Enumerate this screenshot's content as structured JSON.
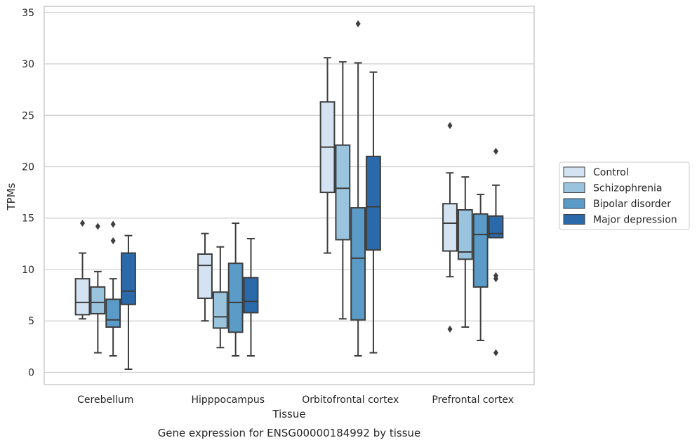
{
  "chart_data": {
    "type": "box",
    "xlabel": "Tissue",
    "ylabel": "TPMs",
    "caption": "Gene expression for ENSG00000184992 by tissue",
    "ylim": [
      -1.2,
      35.6
    ],
    "yticks": [
      0,
      5,
      10,
      15,
      20,
      25,
      30,
      35
    ],
    "grid": "horizontal",
    "legend_position": "right",
    "categories": [
      "Cerebellum",
      "Hipppocampus",
      "Orbitofrontal cortex",
      "Prefrontal cortex"
    ],
    "series": [
      {
        "name": "Control",
        "color": "#d3e3f1",
        "boxes": [
          {
            "whislo": 5.2,
            "q1": 5.6,
            "med": 6.8,
            "q3": 9.1,
            "whishi": 11.6,
            "fliers": [
              14.5
            ]
          },
          {
            "whislo": 5.0,
            "q1": 7.2,
            "med": 10.4,
            "q3": 11.5,
            "whishi": 13.5,
            "fliers": []
          },
          {
            "whislo": 11.6,
            "q1": 17.5,
            "med": 21.9,
            "q3": 26.3,
            "whishi": 30.6,
            "fliers": []
          },
          {
            "whislo": 9.3,
            "q1": 11.8,
            "med": 14.5,
            "q3": 16.4,
            "whishi": 19.4,
            "fliers": [
              24.0,
              4.2
            ]
          }
        ]
      },
      {
        "name": "Schizophrenia",
        "color": "#9ac4dd",
        "boxes": [
          {
            "whislo": 1.9,
            "q1": 5.7,
            "med": 6.8,
            "q3": 8.3,
            "whishi": 9.8,
            "fliers": [
              14.2
            ]
          },
          {
            "whislo": 2.4,
            "q1": 4.3,
            "med": 5.4,
            "q3": 7.8,
            "whishi": 12.2,
            "fliers": []
          },
          {
            "whislo": 5.2,
            "q1": 12.9,
            "med": 17.9,
            "q3": 22.1,
            "whishi": 30.2,
            "fliers": []
          },
          {
            "whislo": 4.4,
            "q1": 11.0,
            "med": 11.7,
            "q3": 15.8,
            "whishi": 19.0,
            "fliers": []
          }
        ]
      },
      {
        "name": "Bipolar disorder",
        "color": "#5a9bc7",
        "boxes": [
          {
            "whislo": 1.6,
            "q1": 4.4,
            "med": 5.1,
            "q3": 7.1,
            "whishi": 9.1,
            "fliers": [
              14.4,
              12.8
            ]
          },
          {
            "whislo": 1.6,
            "q1": 3.9,
            "med": 6.8,
            "q3": 10.6,
            "whishi": 14.5,
            "fliers": []
          },
          {
            "whislo": 1.6,
            "q1": 5.1,
            "med": 11.1,
            "q3": 16.0,
            "whishi": 30.1,
            "fliers": [
              33.9
            ]
          },
          {
            "whislo": 3.1,
            "q1": 8.3,
            "med": 13.4,
            "q3": 15.4,
            "whishi": 17.3,
            "fliers": []
          }
        ]
      },
      {
        "name": "Major depression",
        "color": "#2b6aaa",
        "boxes": [
          {
            "whislo": 0.3,
            "q1": 6.6,
            "med": 7.9,
            "q3": 11.6,
            "whishi": 13.3,
            "fliers": []
          },
          {
            "whislo": 1.6,
            "q1": 5.8,
            "med": 6.9,
            "q3": 9.2,
            "whishi": 13.0,
            "fliers": []
          },
          {
            "whislo": 1.9,
            "q1": 11.9,
            "med": 16.1,
            "q3": 21.0,
            "whishi": 29.2,
            "fliers": []
          },
          {
            "whislo": 13.1,
            "q1": 13.1,
            "med": 13.5,
            "q3": 15.2,
            "whishi": 18.2,
            "fliers": [
              21.5,
              9.4,
              9.1,
              1.9
            ]
          }
        ]
      }
    ]
  }
}
